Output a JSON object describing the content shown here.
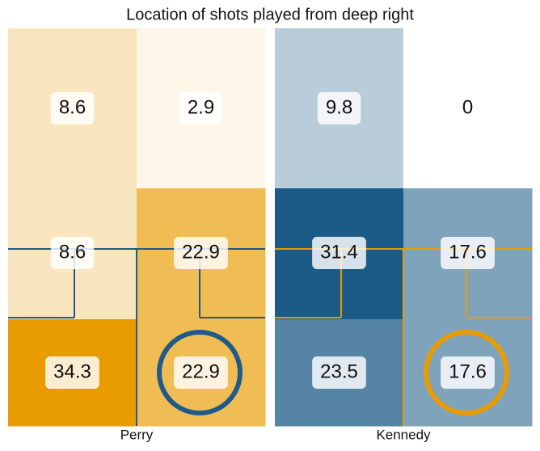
{
  "chart_data": {
    "type": "heatmap",
    "title": "Location of shots played from deep right",
    "panels": [
      {
        "name": "Perry",
        "color": "#e89c00",
        "line_color": "#1f5a88",
        "values": [
          [
            8.6,
            2.9
          ],
          [
            8.6,
            22.9
          ],
          [
            34.3,
            22.9
          ]
        ]
      },
      {
        "name": "Kennedy",
        "color": "#1c5a88",
        "line_color": "#e89c00",
        "values": [
          [
            9.8,
            0.0
          ],
          [
            31.4,
            17.6
          ],
          [
            23.5,
            17.6
          ]
        ]
      }
    ]
  }
}
